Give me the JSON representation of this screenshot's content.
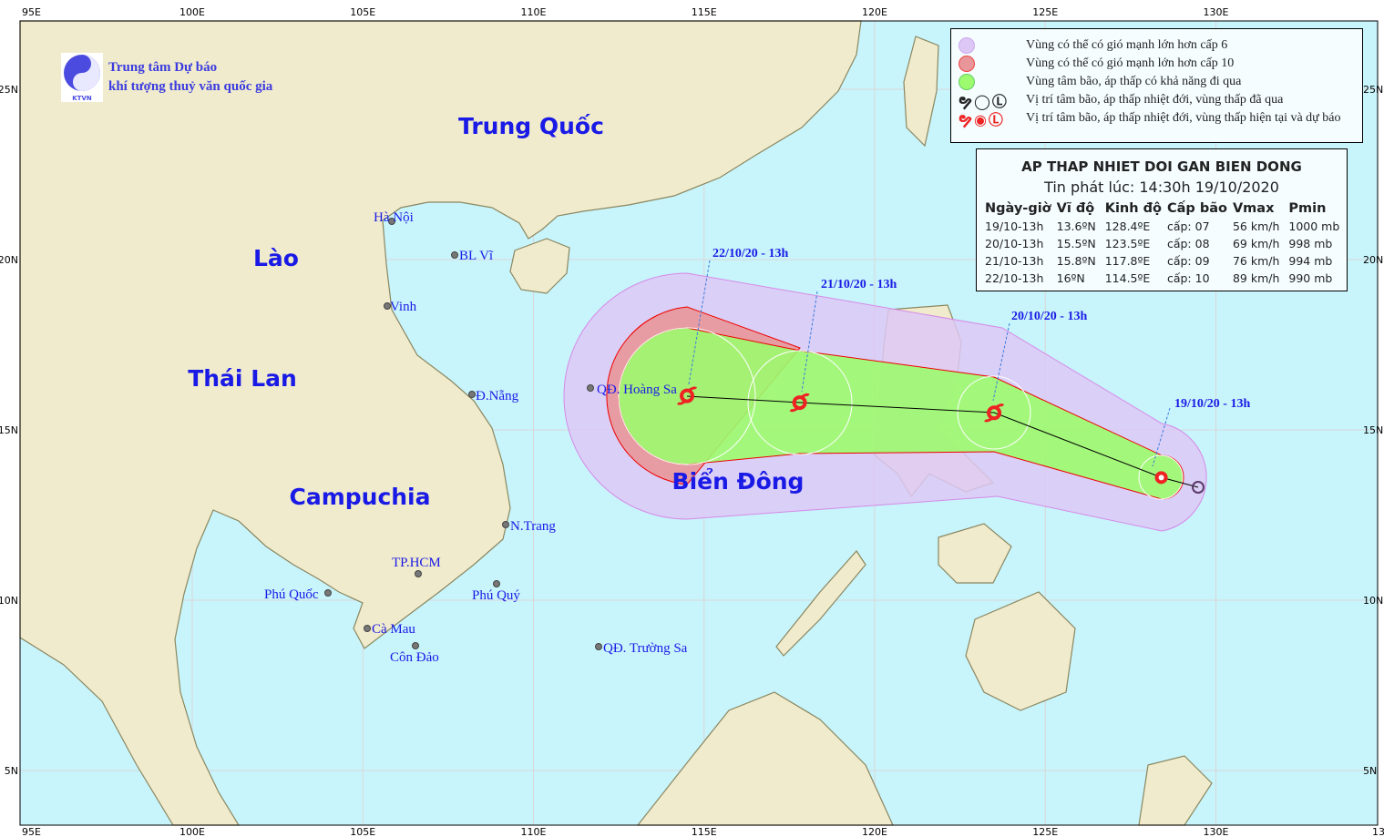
{
  "logo": {
    "line1": "Trung tâm Dự báo",
    "line2": "khí tượng thuỷ văn quốc gia",
    "mark": "KTVN"
  },
  "axes": {
    "lon_labels": [
      "100E",
      "105E",
      "110E",
      "115E",
      "120E",
      "125E",
      "130E"
    ],
    "lat_labels": [
      "25N",
      "20N",
      "15N",
      "10N",
      "5N"
    ],
    "corner_top": "95E",
    "corner_bottom": "95E",
    "bottom_right": "13"
  },
  "countries": [
    "Trung Quốc",
    "Lào",
    "Thái Lan",
    "Campuchia",
    "Biển Đông"
  ],
  "places": [
    "Hà Nội",
    "BL Vĩ",
    "Vinh",
    "Đ.Nẵng",
    "QĐ. Hoàng Sa",
    "N.Trang",
    "TP.HCM",
    "Phú Quốc",
    "Phú Quý",
    "Cà Mau",
    "Côn Đảo",
    "QĐ. Trường Sa"
  ],
  "track": [
    {
      "time": "19/10-13h",
      "label": "19/10/20 - 13h",
      "lat": 13.6,
      "lon": 128.4,
      "level": "cấp: 07",
      "vmax": "56 km/h",
      "pmin": "1000 mb"
    },
    {
      "time": "20/10-13h",
      "label": "20/10/20 - 13h",
      "lat": 15.5,
      "lon": 123.5,
      "level": "cấp: 08",
      "vmax": "69 km/h",
      "pmin": "998 mb"
    },
    {
      "time": "21/10-13h",
      "label": "21/10/20 - 13h",
      "lat": 15.8,
      "lon": 117.8,
      "level": "cấp: 09",
      "vmax": "76 km/h",
      "pmin": "994 mb"
    },
    {
      "time": "22/10-13h",
      "label": "22/10/20 - 13h",
      "lat": 16,
      "lon": 114.5,
      "level": "cấp: 10",
      "vmax": "89 km/h",
      "pmin": "990 mb"
    }
  ],
  "legend": [
    {
      "text": "Vùng có thể có gió mạnh lớn hơn cấp 6",
      "color": "#ddc8f5"
    },
    {
      "text": "Vùng có thể có gió mạnh lớn hơn cấp 10",
      "color": "#e8969a"
    },
    {
      "text": "Vùng tâm bão, áp thấp có khả năng đi qua",
      "color": "#9cfb6e"
    },
    {
      "text": "Vị trí tâm bão, áp thấp nhiệt đới, vùng thấp đã qua",
      "color": "#222222"
    },
    {
      "text": "Vị trí tâm bão, áp thấp nhiệt đới, vùng thấp hiện tại và dự báo",
      "color": "#ee2222"
    }
  ],
  "info": {
    "title": "AP THAP NHIET DOI GAN BIEN DONG",
    "issued": "Tin phát lúc: 14:30h 19/10/2020",
    "headers": [
      "Ngày-giờ",
      "Vĩ độ",
      "Kinh độ",
      "Cấp bão",
      "Vmax",
      "Pmin"
    ],
    "rows": [
      [
        "19/10-13h",
        "13.6ºN",
        "128.4ºE",
        "cấp: 07",
        "56 km/h",
        "1000 mb"
      ],
      [
        "20/10-13h",
        "15.5ºN",
        "123.5ºE",
        "cấp: 08",
        "69 km/h",
        "998 mb"
      ],
      [
        "21/10-13h",
        "15.8ºN",
        "117.8ºE",
        "cấp: 09",
        "76 km/h",
        "994 mb"
      ],
      [
        "22/10-13h",
        "16ºN",
        "114.5ºE",
        "cấp: 10",
        "89 km/h",
        "990 mb"
      ]
    ]
  },
  "colors": {
    "sea": "#c8f4fb",
    "land": "#f0ebcc",
    "border": "#8a8760",
    "text": "#1a1ae6"
  }
}
